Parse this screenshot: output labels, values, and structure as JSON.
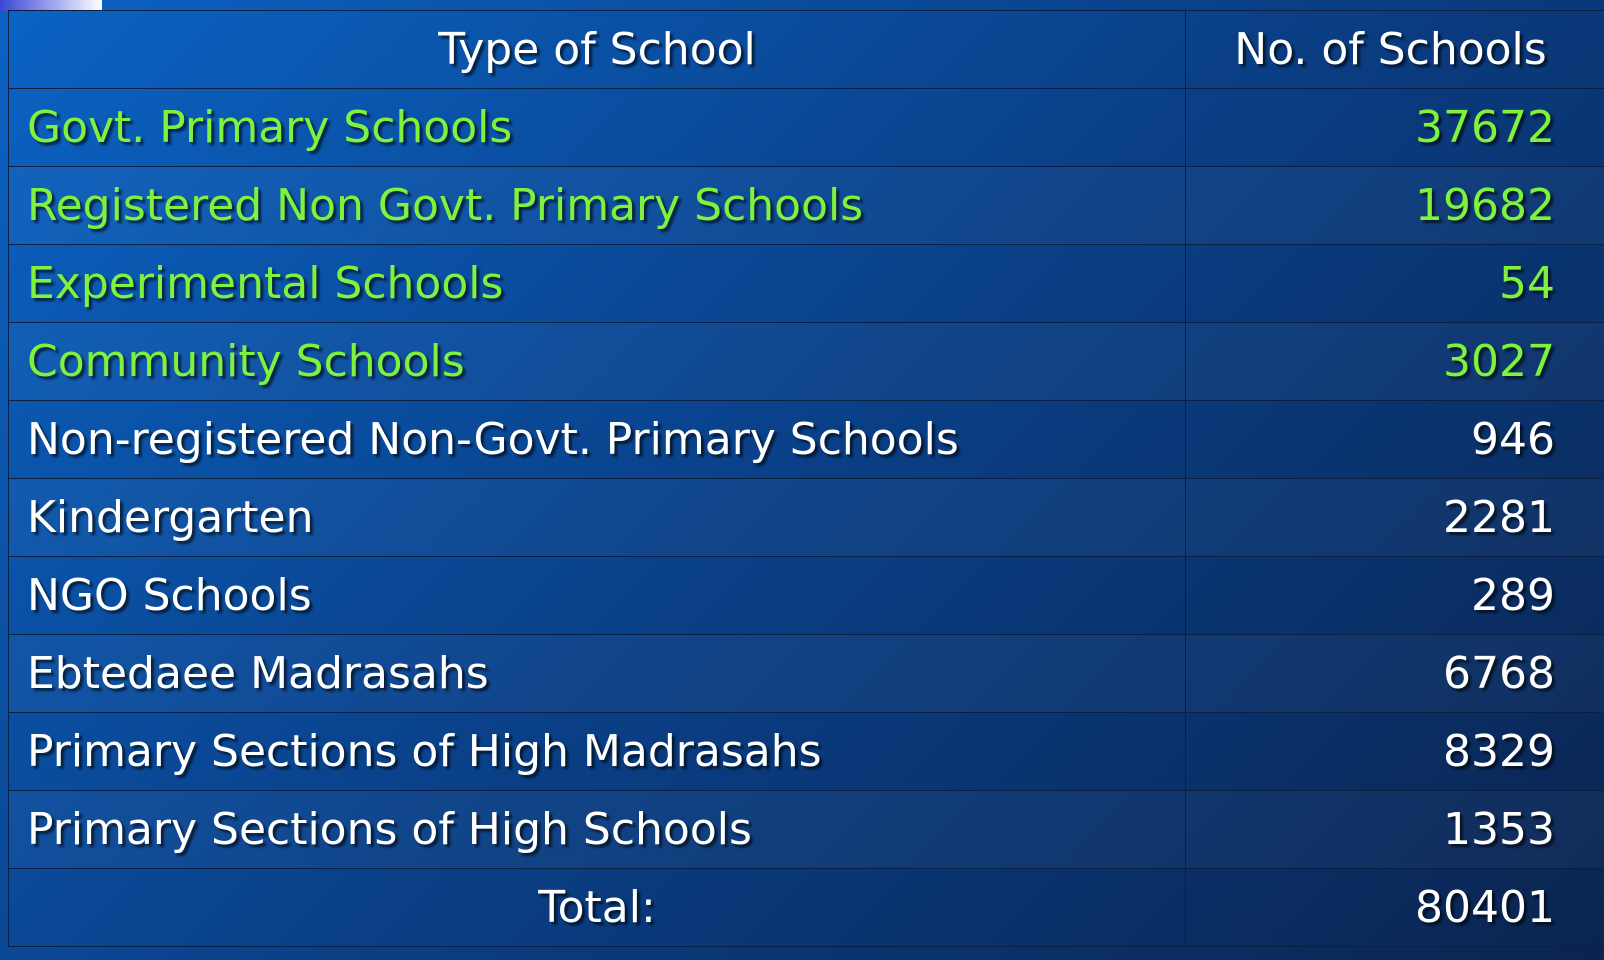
{
  "table": {
    "header": [
      "Type of School",
      "No. of Schools"
    ],
    "rows": [
      {
        "name": "Govt. Primary Schools",
        "count": 37672,
        "color": "#7ef23c"
      },
      {
        "name": "Registered Non Govt. Primary Schools",
        "count": 19682,
        "color": "#7ef23c"
      },
      {
        "name": "Experimental Schools",
        "count": 54,
        "color": "#7ef23c"
      },
      {
        "name": "Community Schools",
        "count": 3027,
        "color": "#7ef23c"
      },
      {
        "name": "Non-registered Non-Govt. Primary Schools",
        "count": 946,
        "color": "#ffffff"
      },
      {
        "name": "Kindergarten",
        "count": 2281,
        "color": "#ffffff"
      },
      {
        "name": "NGO Schools",
        "count": 289,
        "color": "#ffffff"
      },
      {
        "name": "Ebtedaee Madrasahs",
        "count": 6768,
        "color": "#ffffff"
      },
      {
        "name": "Primary Sections of High Madrasahs",
        "count": 8329,
        "color": "#ffffff"
      },
      {
        "name": "Primary Sections of High Schools",
        "count": 1353,
        "color": "#ffffff"
      }
    ],
    "total": {
      "label": "Total:",
      "count": 80401
    }
  }
}
